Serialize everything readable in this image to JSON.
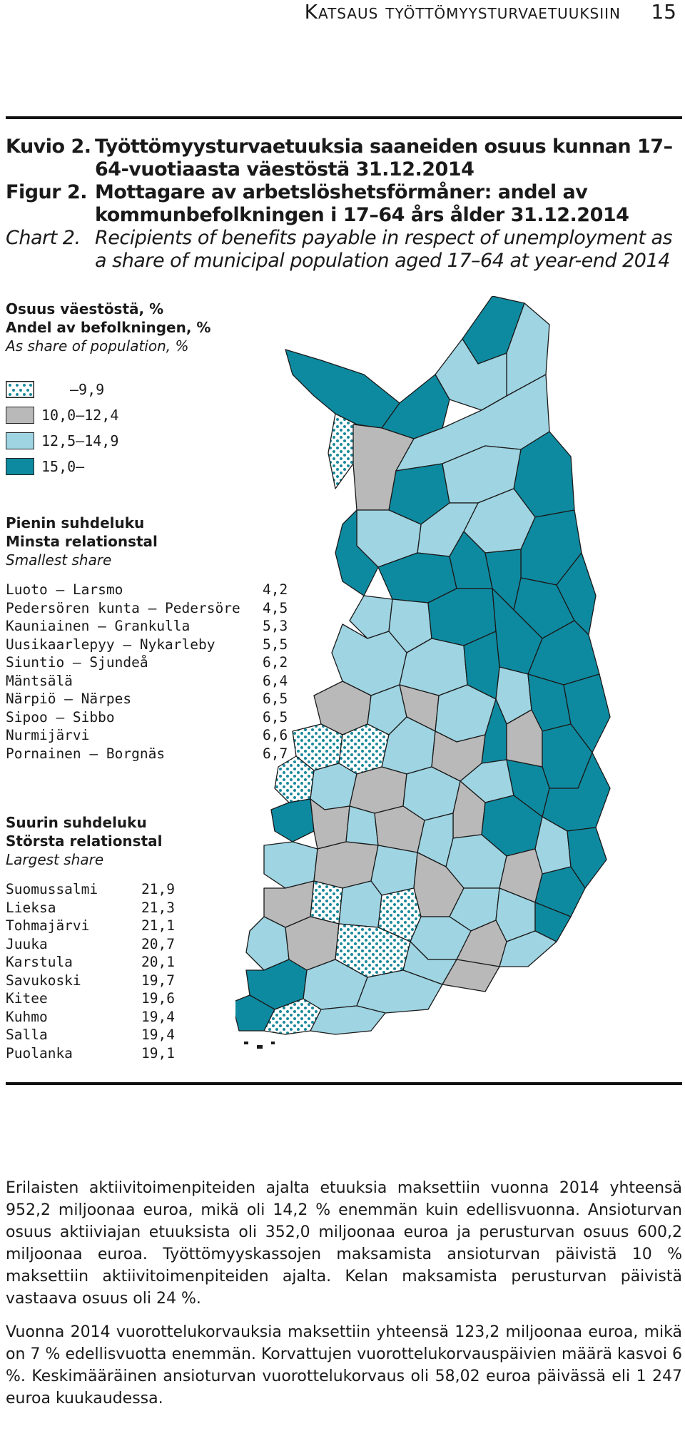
{
  "header": {
    "running_title": "Katsaus työttömyysturvaetuuksiin",
    "page_number": "15"
  },
  "caption": {
    "fi_label": "Kuvio 2.",
    "fi_text": "Työttömyysturvaetuuksia saaneiden osuus kunnan 17–64-vuotiaasta väestöstä 31.12.2014",
    "sv_label": "Figur 2.",
    "sv_text": "Mottagare av arbetslöshetsförmåner: andel av kommunbefolkningen i 17–64 års ålder 31.12.2014",
    "en_label": "Chart 2.",
    "en_text": "Recipients of benefits payable in respect of unemployment as a share of municipal population aged 17–64 at year-end 2014"
  },
  "legend": {
    "title_fi": "Osuus väestöstä, %",
    "title_sv": "Andel av befolkningen, %",
    "title_en": "As share of population, %",
    "classes": [
      {
        "label": "–9,9",
        "color": "#ffffff",
        "pattern": "dots",
        "dot_color": "#1a8a9a"
      },
      {
        "label": "10,0–12,4",
        "color": "#b9b9b9"
      },
      {
        "label": "12,5–14,9",
        "color": "#9fd4e2"
      },
      {
        "label": "15,0–",
        "color": "#0e8aa0"
      }
    ]
  },
  "smallest": {
    "head_fi": "Pienin suhdeluku",
    "head_sv": "Minsta relationstal",
    "head_en": "Smallest share",
    "rows": [
      {
        "name": "Luoto – Larsmo",
        "value": "4,2"
      },
      {
        "name": "Pedersören kunta – Pedersöre",
        "value": "4,5"
      },
      {
        "name": "Kauniainen – Grankulla",
        "value": "5,3"
      },
      {
        "name": "Uusikaarlepyy – Nykarleby",
        "value": "5,5"
      },
      {
        "name": "Siuntio – Sjundeå",
        "value": "6,2"
      },
      {
        "name": "Mäntsälä",
        "value": "6,4"
      },
      {
        "name": "Närpiö – Närpes",
        "value": "6,5"
      },
      {
        "name": "Sipoo – Sibbo",
        "value": "6,5"
      },
      {
        "name": "Nurmijärvi",
        "value": "6,6"
      },
      {
        "name": "Pornainen – Borgnäs",
        "value": "6,7"
      }
    ]
  },
  "largest": {
    "head_fi": "Suurin suhdeluku",
    "head_sv": "Största relationstal",
    "head_en": "Largest share",
    "rows": [
      {
        "name": "Suomussalmi",
        "value": "21,9"
      },
      {
        "name": "Lieksa",
        "value": "21,3"
      },
      {
        "name": "Tohmajärvi",
        "value": "21,1"
      },
      {
        "name": "Juuka",
        "value": "20,7"
      },
      {
        "name": "Karstula",
        "value": "20,1"
      },
      {
        "name": "Savukoski",
        "value": "19,7"
      },
      {
        "name": "Kitee",
        "value": "19,6"
      },
      {
        "name": "Kuhmo",
        "value": "19,4"
      },
      {
        "name": "Salla",
        "value": "19,4"
      },
      {
        "name": "Puolanka",
        "value": "19,1"
      }
    ]
  },
  "body": {
    "paragraph_1": "Erilaisten aktiivitoimenpiteiden ajalta etuuksia maksettiin vuonna 2014 yhteensä 952,2 miljoonaa euroa, mikä oli 14,2 % enemmän kuin edellisvuonna. Ansioturvan osuus aktiiviajan etuuksista oli 352,0 miljoonaa euroa ja perusturvan osuus 600,2 miljoonaa euroa. Työttömyyskassojen maksamista ansioturvan päivistä 10 % maksettiin aktiivitoimenpiteiden ajalta. Kelan maksamista perusturvan päivistä vastaava osuus oli 24 %.",
    "paragraph_2": "Vuonna 2014 vuorottelukorvauksia maksettiin yhteensä 123,2 miljoonaa euroa, mikä on 7 % edellisvuotta enemmän. Korvattujen vuorottelukorvauspäivien määrä kasvoi 6 %. Keskimääräinen ansioturvan vuorottelukorvaus oli 58,02 euroa päivässä eli 1 247 euroa kuukaudessa."
  }
}
